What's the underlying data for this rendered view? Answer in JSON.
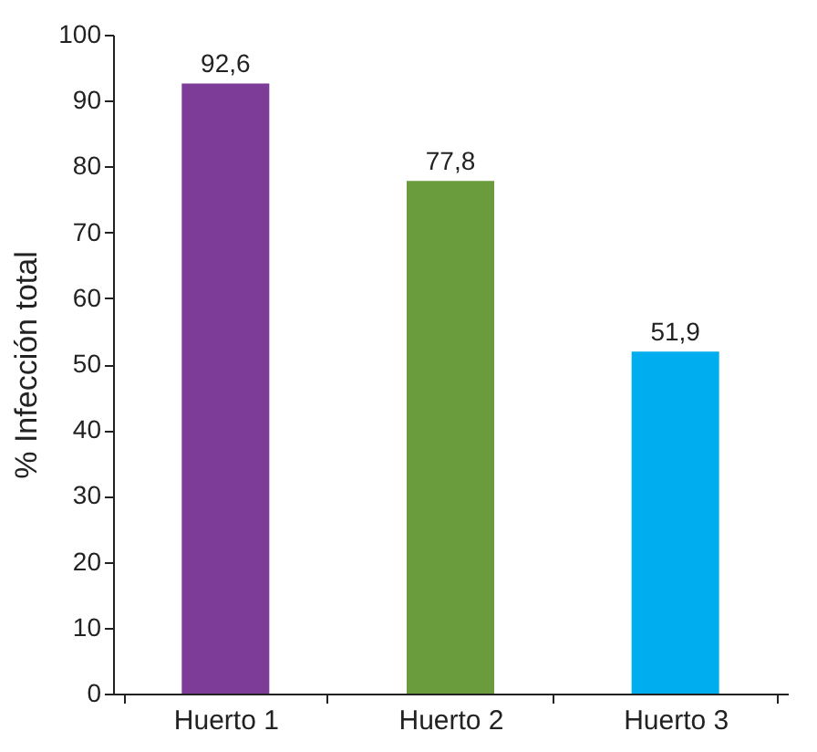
{
  "chart_data": {
    "type": "bar",
    "ylabel": "% Infección total",
    "categories": [
      "Huerto 1",
      "Huerto 2",
      "Huerto 3"
    ],
    "values": [
      92.6,
      77.8,
      51.9
    ],
    "colors": [
      "#7d3c98",
      "#6a9b3c",
      "#00adee"
    ],
    "value_labels": [
      "92,6",
      "77,8",
      "51,9"
    ],
    "ylim": [
      0,
      100
    ],
    "yticks": [
      0,
      10,
      20,
      30,
      40,
      50,
      60,
      70,
      80,
      90,
      100
    ],
    "grid": false
  }
}
